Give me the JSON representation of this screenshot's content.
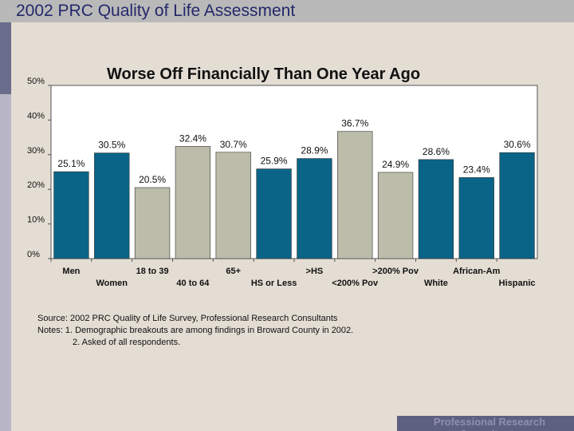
{
  "header": {
    "title": "2002 PRC Quality of Life Assessment"
  },
  "colors": {
    "dark_bar": "#0a6487",
    "light_bar": "#bcbcaa",
    "plot_bg": "#ffffff"
  },
  "chart_data": {
    "type": "bar",
    "title": "Worse Off Financially Than One Year Ago",
    "ylim": [
      0,
      50
    ],
    "yticks": [
      "0%",
      "10%",
      "20%",
      "30%",
      "40%",
      "50%"
    ],
    "categories": [
      "Men",
      "Women",
      "18 to 39",
      "40 to 64",
      "65+",
      "HS or Less",
      ">HS",
      "<200% Pov",
      ">200% Pov",
      "White",
      "African-Am",
      "Hispanic"
    ],
    "values": [
      25.1,
      30.5,
      20.5,
      32.4,
      30.7,
      25.9,
      28.9,
      36.7,
      24.9,
      28.6,
      23.4,
      30.6
    ],
    "labels": [
      "25.1%",
      "30.5%",
      "20.5%",
      "32.4%",
      "30.7%",
      "25.9%",
      "28.9%",
      "36.7%",
      "24.9%",
      "28.6%",
      "23.4%",
      "30.6%"
    ],
    "shade": [
      "dark",
      "dark",
      "light",
      "light",
      "light",
      "dark",
      "dark",
      "light",
      "light",
      "dark",
      "dark",
      "dark"
    ]
  },
  "notes": {
    "source": "Source: 2002 PRC Quality of Life Survey, Professional Research Consultants",
    "notes_1": "Notes:   1. Demographic breakouts are among findings in Broward County in 2002.",
    "notes_2": "2. Asked of all respondents."
  },
  "footer": {
    "text": "Professional Research Consultants"
  }
}
